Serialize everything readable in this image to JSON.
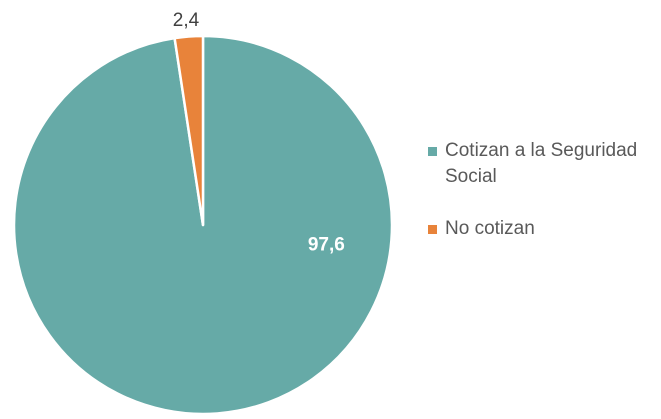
{
  "chart_data": {
    "type": "pie",
    "series": [
      {
        "name": "Cotizan a la Seguridad Social",
        "value": 97.6,
        "label": "97,6",
        "color": "#66AAA7"
      },
      {
        "name": "No cotizan",
        "value": 2.4,
        "label": "2,4",
        "color": "#E8833A"
      }
    ],
    "legend_position": "right"
  }
}
